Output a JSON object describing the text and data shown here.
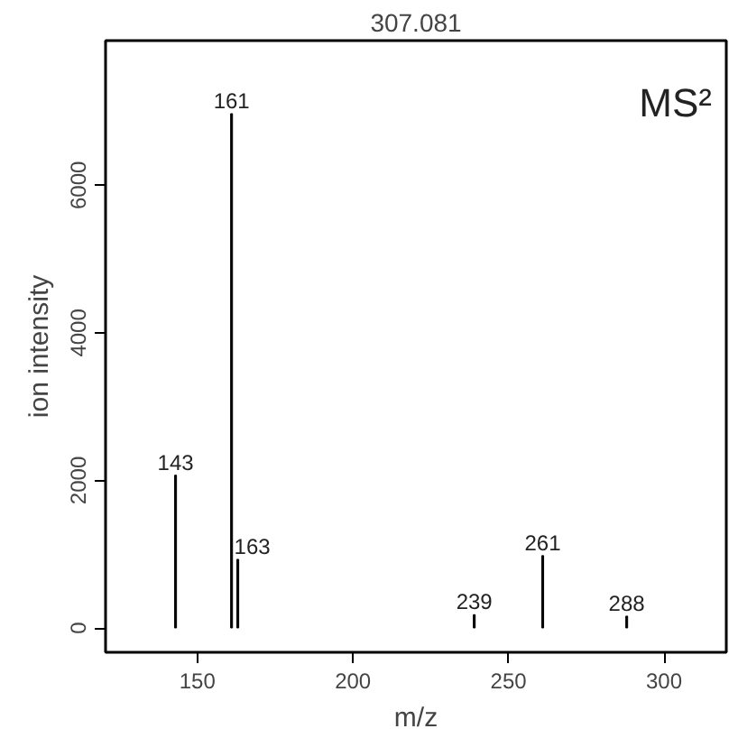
{
  "chart_data": {
    "type": "bar",
    "title": "307.081",
    "xlabel": "m/z",
    "ylabel": "ion intensity",
    "x": [
      143,
      161,
      163,
      239,
      261,
      288
    ],
    "values": [
      2070,
      6970,
      930,
      180,
      980,
      160
    ],
    "color": "#000000",
    "xlim": [
      120.5,
      320
    ],
    "xticks": [
      150,
      200,
      250,
      300
    ],
    "ylim": [
      -330,
      7960
    ],
    "yticks": [
      0,
      2000,
      4000,
      6000
    ],
    "grid": false,
    "annotations": [
      {
        "text": "143",
        "x": 143,
        "y": 2070
      },
      {
        "text": "161",
        "x": 161,
        "y": 6970
      },
      {
        "text": "163",
        "x": 163,
        "y": 930
      },
      {
        "text": "239",
        "x": 239,
        "y": 180
      },
      {
        "text": "261",
        "x": 261,
        "y": 980
      },
      {
        "text": "288",
        "x": 288,
        "y": 160
      },
      "MS²"
    ]
  }
}
